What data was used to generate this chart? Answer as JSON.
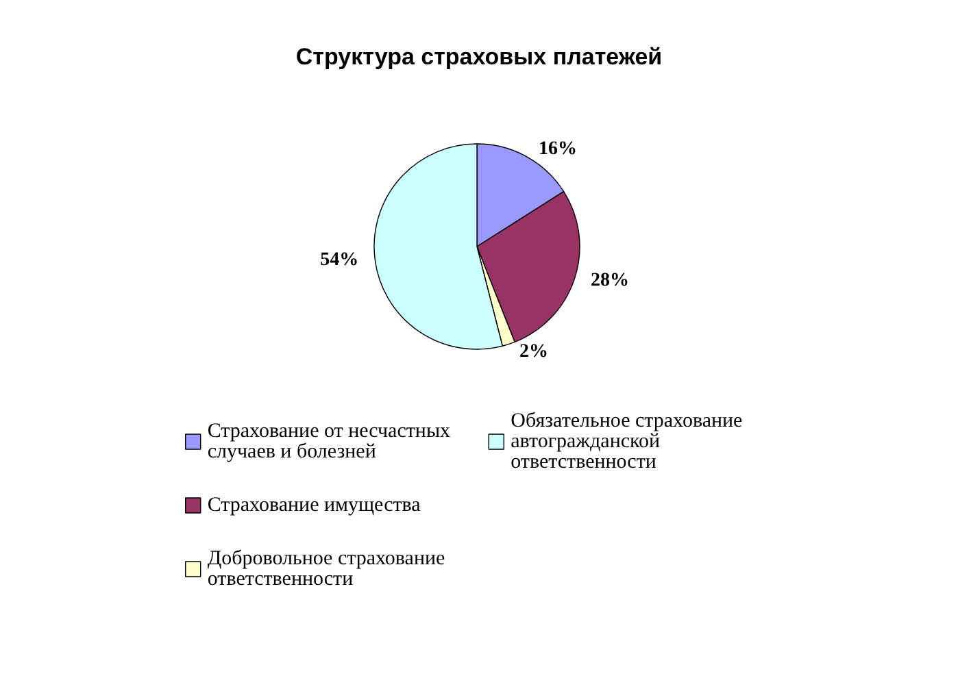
{
  "chart_data": {
    "type": "pie",
    "title": "Структура страховых платежей",
    "categories": [
      "Страхование от несчастных случаев и болезней",
      "Страхование имущества",
      "Добровольное страхование ответственности",
      "Обязательное страхование автогражданской ответственности"
    ],
    "values": [
      16,
      28,
      2,
      54
    ],
    "colors": [
      "#9999ff",
      "#993366",
      "#ffffcc",
      "#ccffff"
    ],
    "value_labels": [
      "16%",
      "28%",
      "2%",
      "54%"
    ],
    "legend": "bottom"
  }
}
